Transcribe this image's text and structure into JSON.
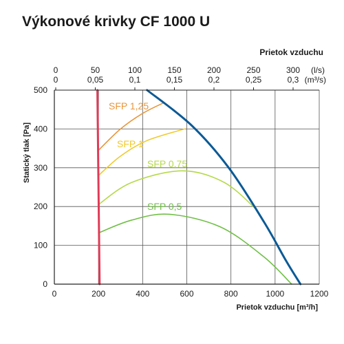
{
  "chart_data": {
    "type": "line",
    "title": "Výkonové krivky CF 1000 U",
    "xlabel": "Prietok vzduchu [m³/h]",
    "ylabel": "Statický tlak [Pa]",
    "xlim": [
      0,
      1200
    ],
    "ylim": [
      0,
      500
    ],
    "x_ticks": [
      "0",
      "200",
      "400",
      "600",
      "800",
      "1000",
      "1200"
    ],
    "y_ticks": [
      "0",
      "100",
      "200",
      "300",
      "400",
      "500"
    ],
    "grid": true,
    "top_axis": {
      "label": "Prietok vzduchu",
      "ls_ticks": [
        "0",
        "50",
        "100",
        "150",
        "200",
        "250",
        "300"
      ],
      "ls_unit": "(l/s)",
      "m3s_ticks": [
        "0",
        "0,05",
        "0,1",
        "0,15",
        "0,2",
        "0,25",
        "0,3"
      ],
      "m3s_unit": "(m³/s)"
    },
    "series": [
      {
        "label": "SFP 1,25",
        "color": "#e8963a",
        "points": [
          [
            200,
            345
          ],
          [
            300,
            400
          ],
          [
            400,
            440
          ],
          [
            490,
            466
          ]
        ]
      },
      {
        "label": "SFP 1",
        "color": "#f0c92c",
        "points": [
          [
            200,
            280
          ],
          [
            300,
            330
          ],
          [
            420,
            370
          ],
          [
            590,
            400
          ]
        ]
      },
      {
        "label": "SFP 0,75",
        "color": "#b5d94a",
        "points": [
          [
            200,
            205
          ],
          [
            350,
            262
          ],
          [
            580,
            292
          ],
          [
            770,
            262
          ],
          [
            920,
            190
          ]
        ]
      },
      {
        "label": "SFP 0,5",
        "color": "#6fbf45",
        "points": [
          [
            200,
            132
          ],
          [
            350,
            165
          ],
          [
            520,
            180
          ],
          [
            750,
            148
          ],
          [
            950,
            70
          ],
          [
            1075,
            0
          ]
        ]
      },
      {
        "label": "",
        "color": "#0b5a96",
        "width": 3,
        "points": [
          [
            420,
            500
          ],
          [
            620,
            410
          ],
          [
            790,
            300
          ],
          [
            950,
            160
          ],
          [
            1050,
            60
          ],
          [
            1115,
            0
          ]
        ]
      },
      {
        "label": "",
        "color": "#e03a56",
        "width": 3,
        "points": [
          [
            195,
            500
          ],
          [
            205,
            0
          ]
        ]
      }
    ]
  }
}
